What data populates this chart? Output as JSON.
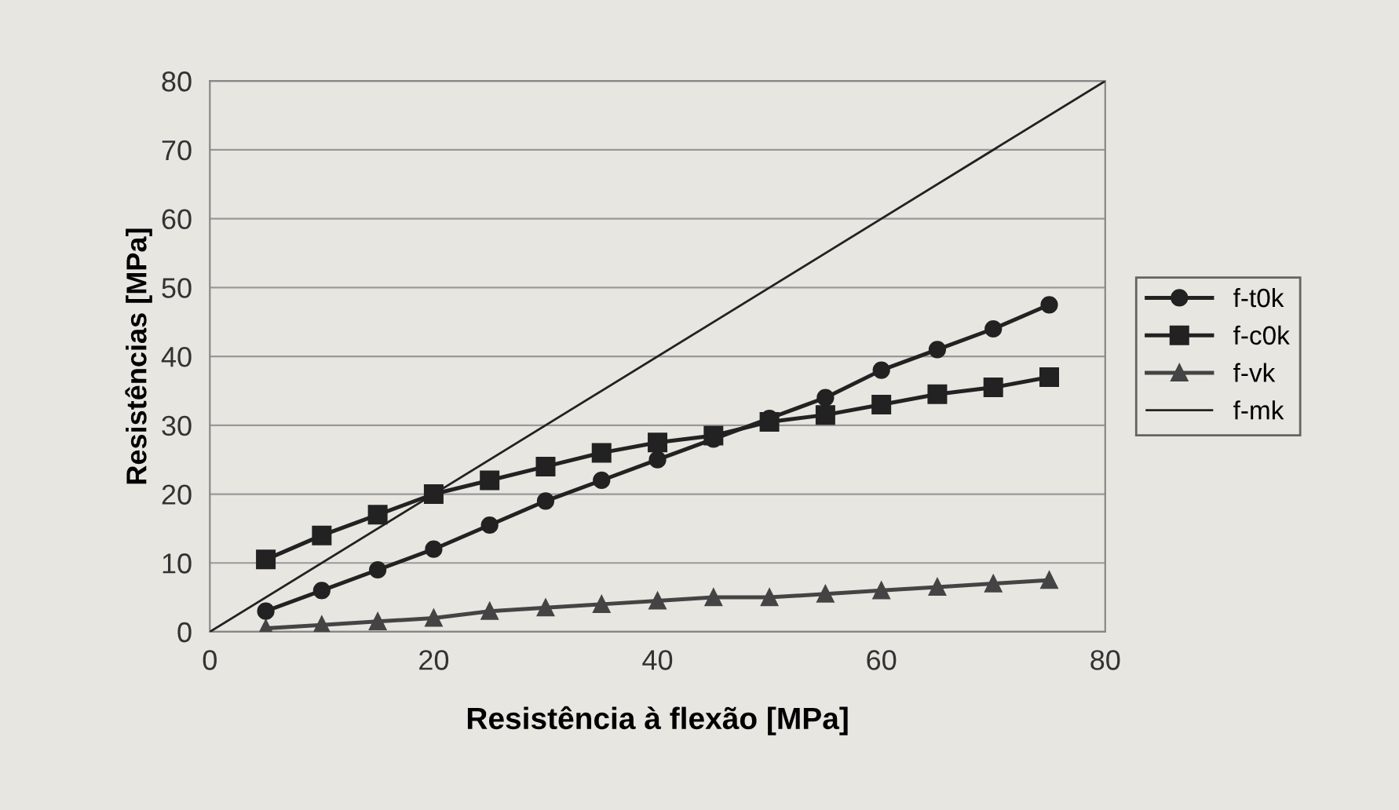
{
  "chart_data": {
    "type": "line",
    "xlabel": "Resistência à flexão [MPa]",
    "ylabel": "Resistências [MPa]",
    "xlim": [
      0,
      80
    ],
    "ylim": [
      0,
      80
    ],
    "xticks": [
      0,
      20,
      40,
      60,
      80
    ],
    "yticks": [
      0,
      10,
      20,
      30,
      40,
      50,
      60,
      70,
      80
    ],
    "grid": "y",
    "legend": "right",
    "x": [
      5,
      10,
      15,
      20,
      25,
      30,
      35,
      40,
      45,
      50,
      55,
      60,
      65,
      70,
      75
    ],
    "series": [
      {
        "name": "f-t0k",
        "color": "#222222",
        "marker": "circle",
        "values": [
          3,
          6,
          9,
          12,
          15.5,
          19,
          22,
          25,
          28,
          31,
          34,
          38,
          41,
          44,
          47.5
        ]
      },
      {
        "name": "f-c0k",
        "color": "#222222",
        "marker": "square",
        "values": [
          10.5,
          14,
          17,
          20,
          22,
          24,
          26,
          27.5,
          28.5,
          30.5,
          31.5,
          33,
          34.5,
          35.5,
          37
        ]
      },
      {
        "name": "f-vk",
        "color": "#444444",
        "marker": "triangle",
        "values": [
          0.5,
          1,
          1.5,
          2,
          3,
          3.5,
          4,
          4.5,
          5,
          5,
          5.5,
          6,
          6.5,
          7,
          7.5
        ]
      },
      {
        "name": "f-mk",
        "color": "#222222",
        "marker": "none",
        "x": [
          0,
          80
        ],
        "values": [
          0,
          80
        ]
      }
    ]
  }
}
